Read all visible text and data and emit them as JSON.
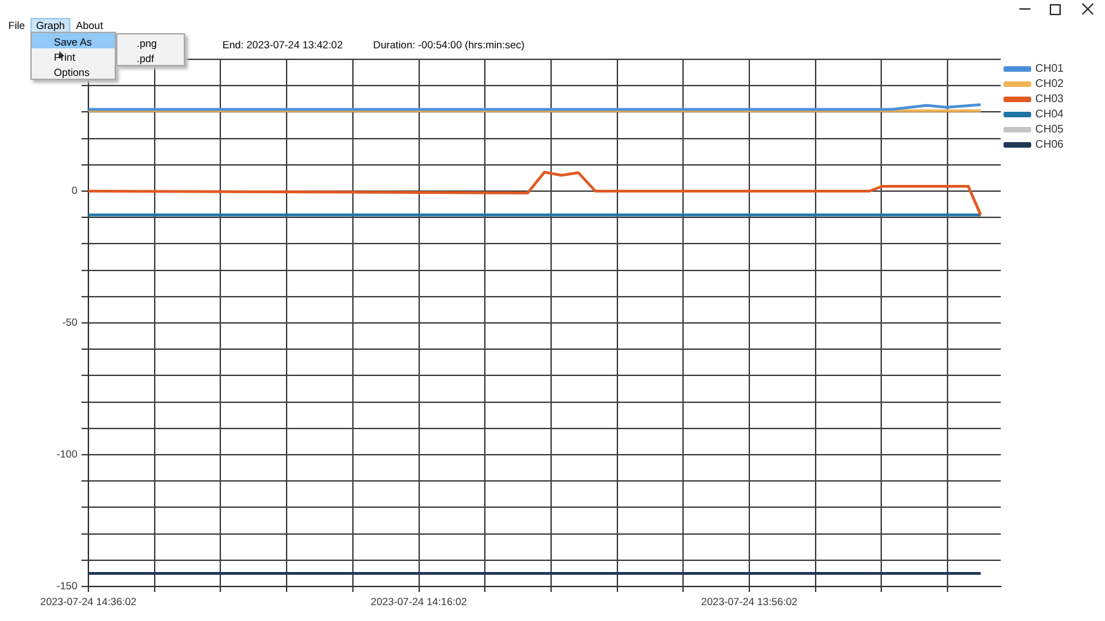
{
  "chart_data": {
    "type": "line",
    "title": "End: 2023-07-24 13:42:02",
    "subtitle": "Duration: -00:54:00 (hrs:min:sec)",
    "annotations": [
      "File",
      "Graph",
      "About",
      "Save As",
      ".png",
      ".pdf",
      "Print",
      "Options"
    ],
    "xlim": [
      "2023-07-24T14:36:02",
      "2023-07-24T13:40:49"
    ],
    "ylim": [
      -150,
      50
    ],
    "xticks": [
      {
        "value": "2023-07-24T14:36:02",
        "label": "2023-07-24 14:36:02"
      },
      {
        "value": "2023-07-24T14:32:02",
        "label": null
      },
      {
        "value": "2023-07-24T14:28:02",
        "label": null
      },
      {
        "value": "2023-07-24T14:24:02",
        "label": null
      },
      {
        "value": "2023-07-24T14:20:02",
        "label": null
      },
      {
        "value": "2023-07-24T14:16:02",
        "label": "2023-07-24 14:16:02"
      },
      {
        "value": "2023-07-24T14:12:02",
        "label": null
      },
      {
        "value": "2023-07-24T14:08:02",
        "label": null
      },
      {
        "value": "2023-07-24T14:04:02",
        "label": null
      },
      {
        "value": "2023-07-24T14:00:02",
        "label": null
      },
      {
        "value": "2023-07-24T13:56:02",
        "label": "2023-07-24 13:56:02"
      },
      {
        "value": "2023-07-24T13:52:02",
        "label": null
      },
      {
        "value": "2023-07-24T13:48:02",
        "label": null
      },
      {
        "value": "2023-07-24T13:44:02",
        "label": null
      }
    ],
    "yticks": [
      -150,
      {
        "value": -140,
        "label": null
      },
      {
        "value": -130,
        "label": null
      },
      {
        "value": -120,
        "label": null
      },
      {
        "value": -110,
        "label": null
      },
      -100,
      {
        "value": -90,
        "label": null
      },
      {
        "value": -80,
        "label": null
      },
      {
        "value": -70,
        "label": null
      },
      {
        "value": -60,
        "label": null
      },
      -50,
      {
        "value": -40,
        "label": null
      },
      {
        "value": -30,
        "label": null
      },
      {
        "value": -20,
        "label": null
      },
      {
        "value": -10,
        "label": null
      },
      0,
      {
        "value": 10,
        "label": null
      },
      {
        "value": 20,
        "label": null
      },
      {
        "value": 30,
        "label": null
      },
      {
        "value": 40,
        "label": null
      },
      {
        "value": 50,
        "label": null
      }
    ],
    "grid": true,
    "legend": "top right",
    "line_style": "solid",
    "series": [
      {
        "name": "CH01",
        "color": "#4a8fd8",
        "x": [
          "2023-07-24T14:36:02",
          "2023-07-24T13:47:24",
          "2023-07-24T13:45:18",
          "2023-07-24T13:44:06",
          "2023-07-24T13:42:02"
        ],
        "values": [
          31,
          31,
          32.5,
          31.8,
          32.8
        ]
      },
      {
        "name": "CH02",
        "color": "#f0b455",
        "x": [
          "2023-07-24T14:36:02",
          "2023-07-24T13:42:02"
        ],
        "values": [
          30.5,
          30.5
        ]
      },
      {
        "name": "CH03",
        "color": "#e05a22",
        "x": [
          "2023-07-24T14:36:02",
          "2023-07-24T14:09:27",
          "2023-07-24T14:08:26",
          "2023-07-24T14:07:24",
          "2023-07-24T14:06:23",
          "2023-07-24T14:05:21",
          "2023-07-24T13:48:46",
          "2023-07-24T13:48:00",
          "2023-07-24T13:42:47",
          "2023-07-24T13:42:02"
        ],
        "values": [
          0,
          -0.7,
          7.2,
          6,
          7,
          0,
          0,
          1.8,
          1.8,
          -9
        ]
      },
      {
        "name": "CH04",
        "color": "#1f74a6",
        "x": [
          "2023-07-24T14:36:02",
          "2023-07-24T13:42:02"
        ],
        "values": [
          -9,
          -9
        ]
      },
      {
        "name": "CH05",
        "color": "#c4c4c4"
      },
      {
        "name": "CH06",
        "color": "#1f3857",
        "x": [
          "2023-07-24T14:36:02",
          "2023-07-24T13:42:02"
        ],
        "values": [
          -145,
          -145
        ]
      }
    ]
  }
}
